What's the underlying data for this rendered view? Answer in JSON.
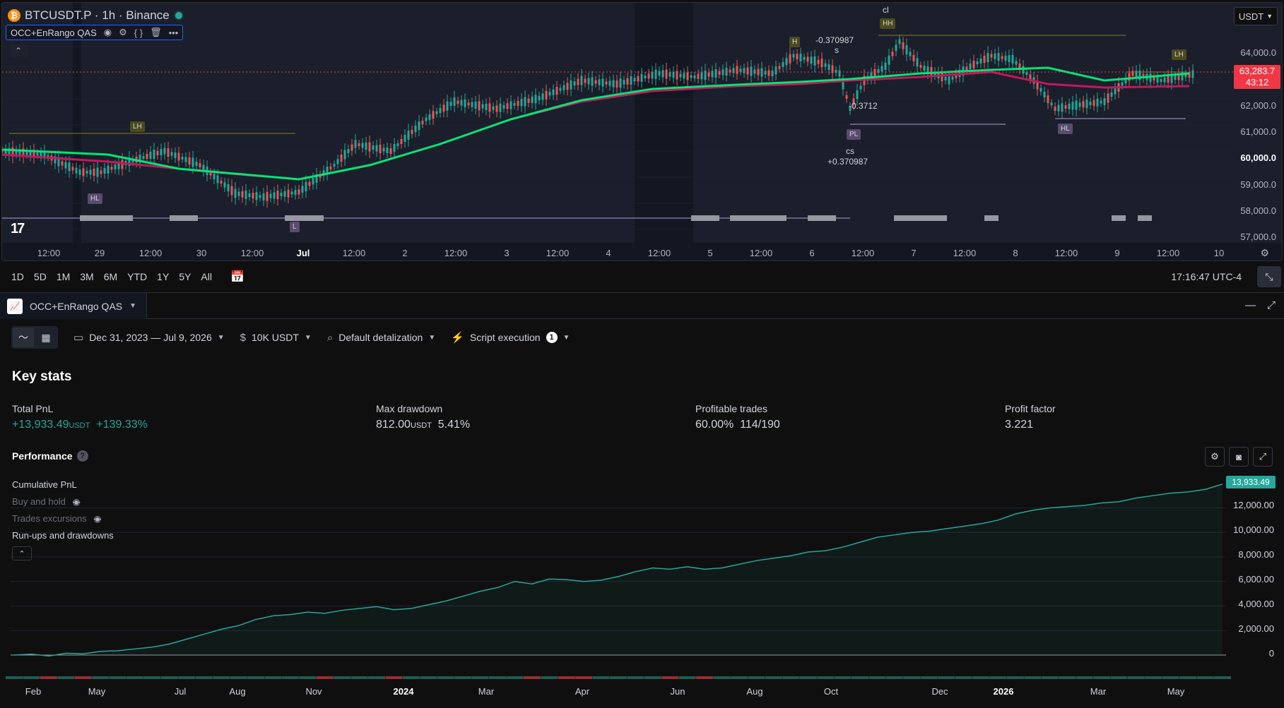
{
  "chart": {
    "symbol": "BTCUSDT.P · 1h · Binance",
    "btc_icon": "bitcoin-icon",
    "indicator_name": "OCC+EnRango QAS",
    "currency": "USDT",
    "price_tag_value": "63,283.7",
    "price_tag_countdown": "43:12",
    "y_ticks": [
      "64,000.0",
      "62,000.0",
      "61,000.0",
      "60,000.0",
      "59,000.0",
      "58,000.0",
      "57,000.0"
    ],
    "x_ticks": [
      "12:00",
      "29",
      "12:00",
      "30",
      "12:00",
      "Jul",
      "12:00",
      "2",
      "12:00",
      "3",
      "12:00",
      "4",
      "12:00",
      "5",
      "12:00",
      "6",
      "12:00",
      "7",
      "12:00",
      "8",
      "12:00",
      "9",
      "12:00",
      "10"
    ],
    "labels": {
      "lh1": "LH",
      "hl1": "HL",
      "l1": "L",
      "h1": "H",
      "hh1": "HH",
      "cl": "cl",
      "s": "s",
      "lh2": "LH",
      "hl2": "HL",
      "pl": "PL",
      "cs": "cs"
    },
    "annotations": {
      "a1": "-0.370987",
      "a2": "-0.3712",
      "a3": "+0.370987"
    }
  },
  "range_bar": {
    "ranges": [
      "1D",
      "5D",
      "1M",
      "3M",
      "6M",
      "YTD",
      "1Y",
      "5Y",
      "All"
    ],
    "clock": "17:16:47 UTC-4"
  },
  "panel": {
    "strategy_name": "OCC+EnRango QAS",
    "date_range": "Dec 31, 2023 — Jul 9, 2026",
    "capital": "10K USDT",
    "detalization": "Default detalization",
    "script_execution": "Script execution",
    "script_execution_count": "1",
    "key_stats_title": "Key stats",
    "stats": {
      "total_pnl_label": "Total PnL",
      "total_pnl_value": "+13,933.49",
      "total_pnl_unit": "USDT",
      "total_pnl_pct": "+139.33%",
      "max_dd_label": "Max drawdown",
      "max_dd_value": "812.00",
      "max_dd_unit": "USDT",
      "max_dd_pct": "5.41%",
      "profitable_label": "Profitable trades",
      "profitable_pct": "60.00%",
      "profitable_ratio": "114/190",
      "profit_factor_label": "Profit factor",
      "profit_factor_value": "3.221"
    },
    "performance_title": "Performance",
    "legend": {
      "cumulative": "Cumulative PnL",
      "buy_hold": "Buy and hold",
      "excursions": "Trades excursions",
      "runups": "Run-ups and drawdowns"
    }
  },
  "chart_data": {
    "type": "area",
    "title": "",
    "xlabel": "",
    "ylabel": "",
    "x_ticks": [
      "Feb",
      "May",
      "Jul",
      "Aug",
      "Nov",
      "2024",
      "Mar",
      "Apr",
      "Jun",
      "Aug",
      "Oct",
      "Dec",
      "2026",
      "Mar",
      "May"
    ],
    "y_ticks": [
      "12,000.00",
      "10,000.00",
      "8,000.00",
      "6,000.00",
      "4,000.00",
      "2,000.00",
      "0"
    ],
    "ylim": [
      0,
      14500
    ],
    "last_value_label": "13,933.49",
    "series": [
      {
        "name": "Cumulative PnL",
        "color": "#26a69a",
        "values": [
          0,
          80,
          -80,
          150,
          100,
          300,
          350,
          500,
          650,
          900,
          1300,
          1700,
          2100,
          2400,
          2900,
          3200,
          3300,
          3500,
          3400,
          3650,
          3800,
          3950,
          3700,
          3800,
          4100,
          4400,
          4800,
          5200,
          5500,
          6000,
          5800,
          6200,
          6150,
          6000,
          6100,
          6400,
          6800,
          7100,
          7000,
          7200,
          7000,
          7100,
          7400,
          7700,
          7900,
          8100,
          8400,
          8500,
          8800,
          9200,
          9600,
          9800,
          10000,
          10100,
          10300,
          10500,
          10700,
          11000,
          11500,
          11800,
          12000,
          12100,
          12200,
          12400,
          12500,
          12800,
          13000,
          13200,
          13300,
          13500,
          13933.49
        ]
      }
    ]
  }
}
